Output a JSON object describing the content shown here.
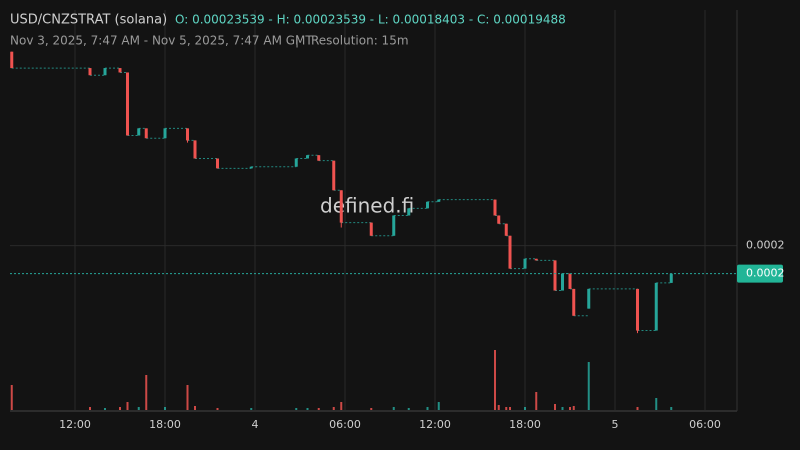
{
  "chart_data": {
    "type": "candlestick",
    "title": "USD/CNZSTRAT (solana)",
    "legend_text": "O: 0.00023539 - H: 0.00023539 - L: 0.00018403 - C: 0.00019488",
    "subtitle": "Nov 3, 2025, 7:47 AM - Nov 5, 2025, 7:47 AM GMT",
    "separator": "|",
    "resolution": "Resolution: 15m",
    "watermark": "defined.fi",
    "x": [
      "2025-11-03T07:47",
      "2025-11-03T13:00",
      "2025-11-03T14:00",
      "2025-11-03T15:00",
      "2025-11-03T15:30",
      "2025-11-03T16:15",
      "2025-11-03T16:45",
      "2025-11-03T18:00",
      "2025-11-03T19:30",
      "2025-11-03T20:00",
      "2025-11-03T21:30",
      "2025-11-03T23:45",
      "2025-11-04T02:45",
      "2025-11-04T03:30",
      "2025-11-04T04:15",
      "2025-11-04T05:15",
      "2025-11-04T05:45",
      "2025-11-04T07:45",
      "2025-11-04T09:15",
      "2025-11-04T10:15",
      "2025-11-04T11:30",
      "2025-11-04T12:15",
      "2025-11-04T16:00",
      "2025-11-04T16:15",
      "2025-11-04T16:45",
      "2025-11-04T17:00",
      "2025-11-04T18:00",
      "2025-11-04T18:45",
      "2025-11-04T20:00",
      "2025-11-04T20:30",
      "2025-11-04T21:00",
      "2025-11-04T21:15",
      "2025-11-04T22:15",
      "2025-11-05T01:30",
      "2025-11-05T02:45",
      "2025-11-05T03:45"
    ],
    "open": [
      0.00023539,
      0.0002324,
      0.0002311,
      0.0002324,
      0.0002316,
      0.0002201,
      0.0002214,
      0.0002196,
      0.0002214,
      0.0002192,
      0.0002159,
      0.0002141,
      0.0002144,
      0.0002159,
      0.0002165,
      0.0002155,
      0.0002101,
      0.0002042,
      0.0002018,
      0.0002055,
      0.0002068,
      0.000208,
      0.0002084,
      0.0002055,
      0.000204,
      0.0002018,
      0.0001958,
      0.0001976,
      0.0001973,
      0.0001918,
      0.0001949,
      0.0001921,
      0.0001885,
      0.0001921,
      0.0001845,
      0.0001932
    ],
    "high": [
      0.00023539,
      0.0002324,
      0.0002324,
      0.0002324,
      0.0002316,
      0.0002214,
      0.0002214,
      0.0002214,
      0.0002214,
      0.0002192,
      0.0002159,
      0.0002144,
      0.0002159,
      0.0002165,
      0.0002165,
      0.0002155,
      0.0002101,
      0.0002042,
      0.0002055,
      0.0002068,
      0.000208,
      0.0002084,
      0.0002084,
      0.0002055,
      0.000204,
      0.0002018,
      0.0001976,
      0.0001976,
      0.0001973,
      0.0001949,
      0.0001949,
      0.0001921,
      0.0001921,
      0.0001921,
      0.0001932,
      0.00019488
    ],
    "low": [
      0.0002324,
      0.0002311,
      0.0002311,
      0.0002316,
      0.0002201,
      0.0002201,
      0.0002196,
      0.0002196,
      0.0002188,
      0.0002159,
      0.0002141,
      0.0002141,
      0.0002144,
      0.0002159,
      0.0002155,
      0.0002101,
      0.0002033,
      0.0002018,
      0.0002018,
      0.0002055,
      0.0002068,
      0.000208,
      0.0002055,
      0.000204,
      0.0002018,
      0.0001958,
      0.0001958,
      0.0001973,
      0.0001918,
      0.0001918,
      0.0001921,
      0.0001872,
      0.0001885,
      0.00018403,
      0.0001845,
      0.0001932
    ],
    "close": [
      0.0002324,
      0.0002311,
      0.0002324,
      0.0002316,
      0.0002201,
      0.0002214,
      0.0002196,
      0.0002214,
      0.0002192,
      0.0002159,
      0.0002141,
      0.0002144,
      0.0002159,
      0.0002165,
      0.0002155,
      0.0002101,
      0.0002042,
      0.0002018,
      0.0002055,
      0.0002068,
      0.000208,
      0.0002084,
      0.0002055,
      0.000204,
      0.0002018,
      0.0001958,
      0.0001976,
      0.0001973,
      0.0001918,
      0.0001949,
      0.0001921,
      0.0001872,
      0.0001921,
      0.0001845,
      0.0001932,
      0.00019488
    ],
    "volume": [
      25,
      3,
      2,
      3,
      8,
      3,
      35,
      3,
      25,
      4,
      2,
      2,
      2,
      2,
      2,
      3,
      8,
      2,
      3,
      2,
      3,
      8,
      60,
      5,
      3,
      3,
      3,
      18,
      6,
      3,
      3,
      4,
      48,
      3,
      12,
      3
    ],
    "up_color": "#26a69a",
    "down_color": "#ef5350",
    "xlim": [
      "2025-11-03T07:40",
      "2025-11-05T08:08"
    ],
    "xticks": [
      {
        "value": "2025-11-03T12:00",
        "label": "12:00"
      },
      {
        "value": "2025-11-03T18:00",
        "label": "18:00"
      },
      {
        "value": "2025-11-04T00:00",
        "label": "4"
      },
      {
        "value": "2025-11-04T06:00",
        "label": "06:00"
      },
      {
        "value": "2025-11-04T12:00",
        "label": "12:00"
      },
      {
        "value": "2025-11-04T18:00",
        "label": "18:00"
      },
      {
        "value": "2025-11-05T00:00",
        "label": "5"
      },
      {
        "value": "2025-11-05T06:00",
        "label": "06:00"
      }
    ],
    "ylim": [
      0.00017,
      0.000243
    ],
    "yticks": [
      {
        "value": 0.0002,
        "label": "0.0002"
      }
    ],
    "volume_lim": [
      0,
      100
    ],
    "last_price": {
      "value": 0.00019488,
      "label": "0.0002"
    },
    "grid": true
  }
}
